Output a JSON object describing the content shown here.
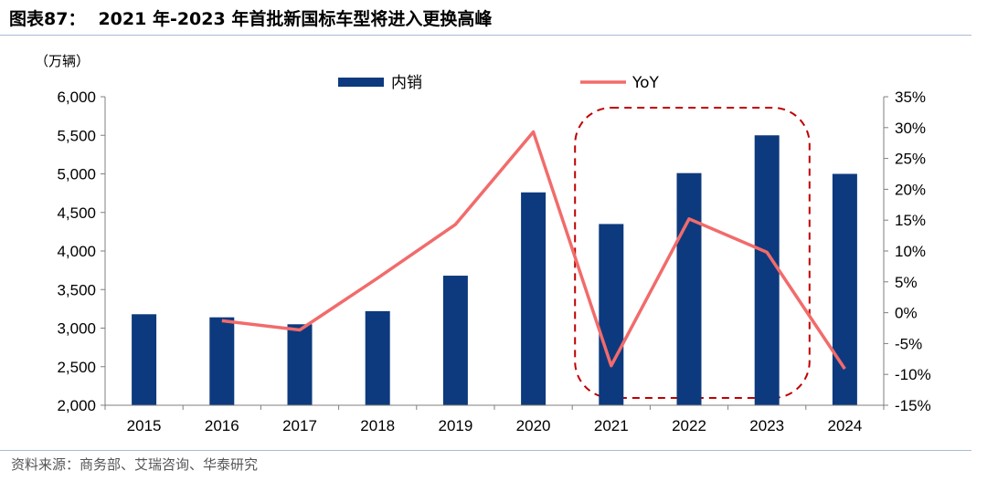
{
  "figure": {
    "label": "图表87：",
    "title": "2021 年-2023 年首批新国标车型将进入更换高峰",
    "source": "资料来源：商务部、艾瑞咨询、华泰研究"
  },
  "chart_data": {
    "type": "bar",
    "categories": [
      "2015",
      "2016",
      "2017",
      "2018",
      "2019",
      "2020",
      "2021",
      "2022",
      "2023",
      "2024"
    ],
    "series": [
      {
        "name": "内销",
        "type": "bar",
        "axis": "left",
        "color": "#0d3a7e",
        "values": [
          3180,
          3140,
          3050,
          3220,
          3680,
          4760,
          4350,
          5010,
          5500,
          5000
        ]
      },
      {
        "name": "YoY",
        "type": "line",
        "axis": "right",
        "color": "#f26b6b",
        "values": [
          null,
          -1.3,
          -2.8,
          5.6,
          14.3,
          29.3,
          -8.6,
          15.2,
          9.8,
          -9.1
        ]
      }
    ],
    "y_left": {
      "unit": "（万辆）",
      "ylim": [
        2000,
        6000
      ],
      "ticks": [
        "2,000",
        "2,500",
        "3,000",
        "3,500",
        "4,000",
        "4,500",
        "5,000",
        "5,500",
        "6,000"
      ]
    },
    "y_right": {
      "ylim": [
        -15,
        35
      ],
      "ticks": [
        "-15%",
        "-10%",
        "-5%",
        "0%",
        "5%",
        "10%",
        "15%",
        "20%",
        "25%",
        "30%",
        "35%"
      ]
    },
    "highlight": {
      "categories": [
        "2021",
        "2023"
      ],
      "style": "dashed rounded box",
      "color": "#c00000"
    },
    "legend_placement": "top-center",
    "grid": false
  }
}
